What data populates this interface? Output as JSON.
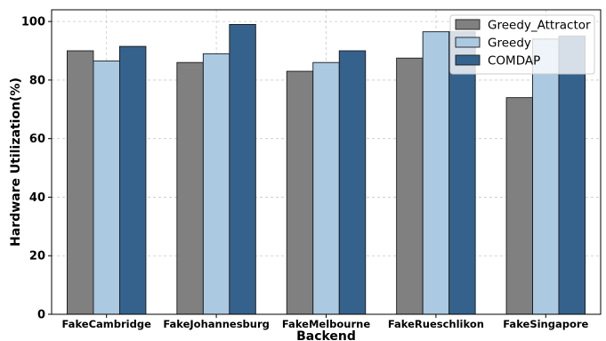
{
  "chart_data": {
    "type": "bar",
    "title": "",
    "xlabel": "Backend",
    "ylabel": "Hardware Utilization(%)",
    "ylim": [
      0,
      104
    ],
    "yticks": [
      0,
      20,
      40,
      60,
      80,
      100
    ],
    "grid": true,
    "legend_position": "top-right",
    "categories": [
      "FakeCambridge",
      "FakeJohannesburg",
      "FakeMelbourne",
      "FakeRueschlikon",
      "FakeSingapore"
    ],
    "series": [
      {
        "name": "Greedy_Attractor",
        "color": "#808080",
        "values": [
          90.0,
          86.0,
          83.0,
          87.5,
          74.0
        ]
      },
      {
        "name": "Greedy",
        "color": "#abc9e1",
        "values": [
          86.5,
          89.0,
          86.0,
          96.5,
          94.0
        ]
      },
      {
        "name": "COMDAP",
        "color": "#35628c",
        "values": [
          91.5,
          99.0,
          90.0,
          96.5,
          95.0
        ]
      }
    ]
  }
}
